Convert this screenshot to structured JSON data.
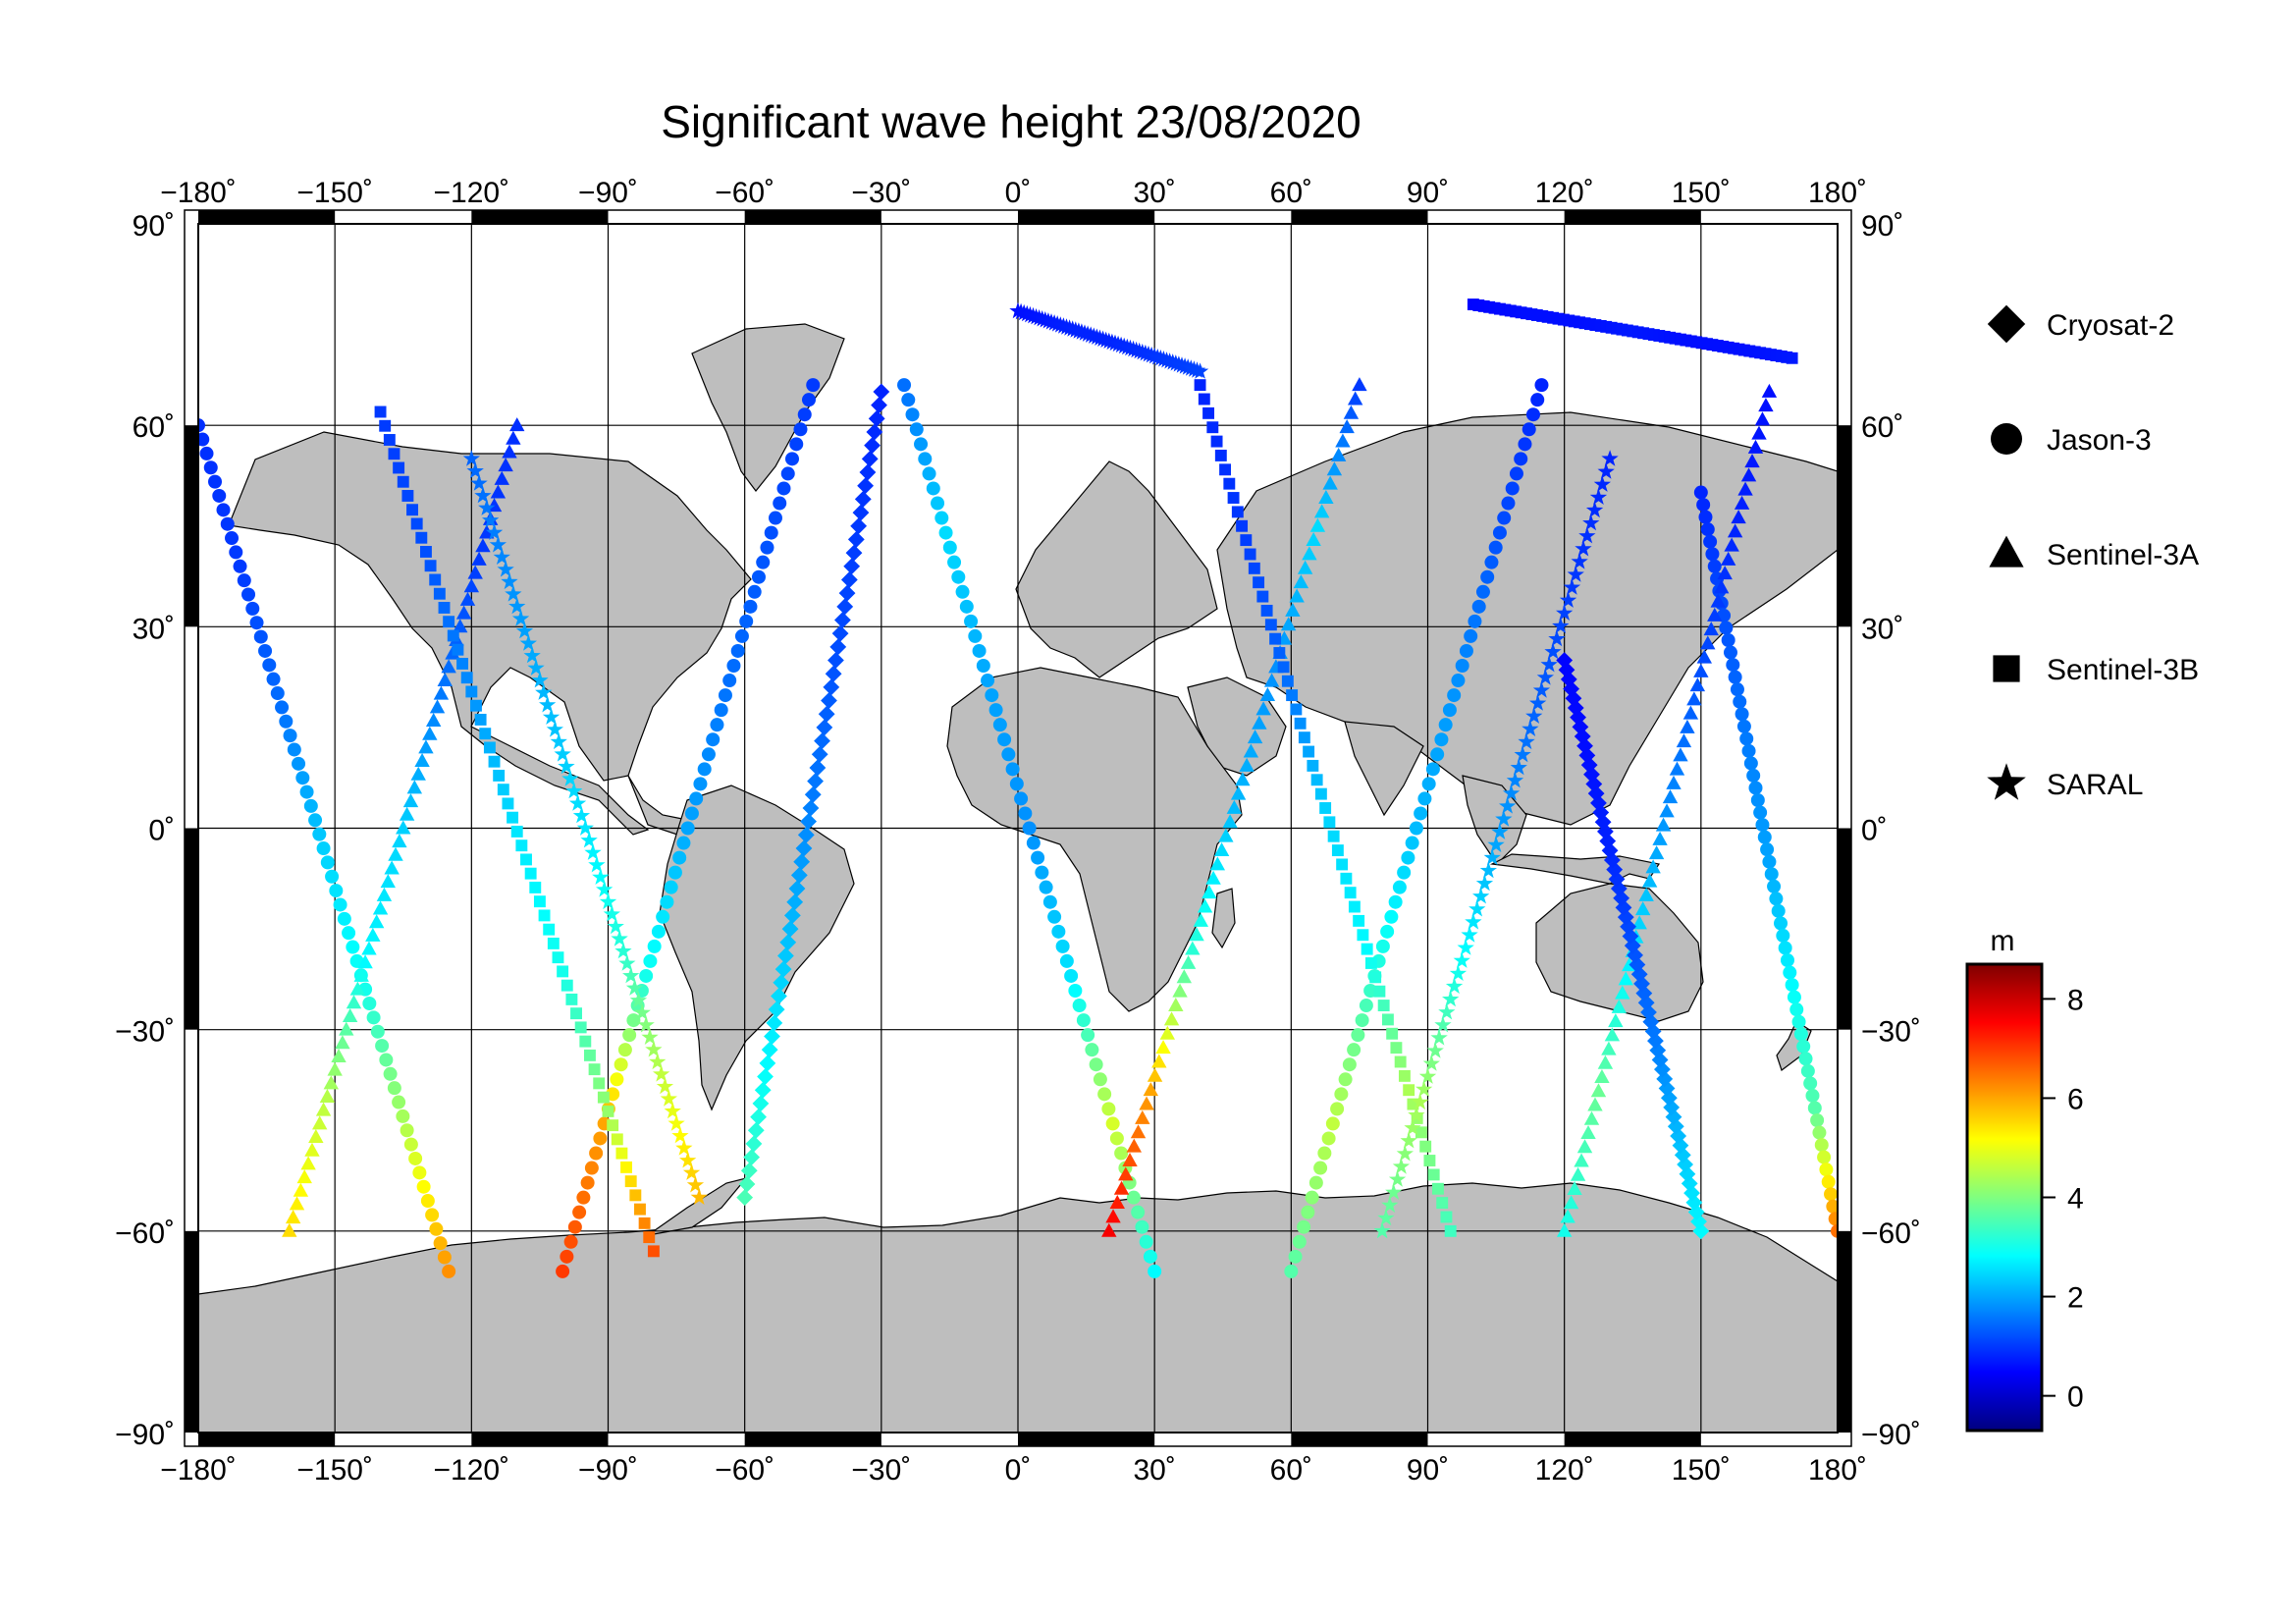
{
  "title": "Significant wave height 23/08/2020",
  "map": {
    "projection": "equirectangular",
    "lon_range": [
      -180,
      180
    ],
    "lat_range": [
      -90,
      90
    ],
    "grid_lon": [
      -180,
      -150,
      -120,
      -90,
      -60,
      -30,
      0,
      30,
      60,
      90,
      120,
      150,
      180
    ],
    "grid_lat": [
      -90,
      -60,
      -30,
      0,
      30,
      60,
      90
    ],
    "lon_tick_labels": [
      "−180˚",
      "−150˚",
      "−120˚",
      "−90˚",
      "−60˚",
      "−30˚",
      "0˚",
      "30˚",
      "60˚",
      "90˚",
      "120˚",
      "150˚",
      "180˚"
    ],
    "lat_tick_labels": [
      "−90˚",
      "−60˚",
      "−30˚",
      "0˚",
      "30˚",
      "60˚",
      "90˚"
    ],
    "land_color": "#bebebe",
    "ocean_color": "#ffffff"
  },
  "legend": {
    "entries": [
      {
        "label": "Cryosat-2",
        "symbol": "diamond"
      },
      {
        "label": "Jason-3",
        "symbol": "circle"
      },
      {
        "label": "Sentinel-3A",
        "symbol": "triangle"
      },
      {
        "label": "Sentinel-3B",
        "symbol": "square"
      },
      {
        "label": "SARAL",
        "symbol": "star"
      }
    ]
  },
  "colorbar": {
    "unit": "m",
    "range": [
      -0.7,
      8.7
    ],
    "ticks": [
      0,
      2,
      4,
      6,
      8
    ],
    "tick_labels": [
      "0",
      "2",
      "4",
      "6",
      "8"
    ],
    "colormap": "jet"
  },
  "chart_data": {
    "type": "scatter",
    "title": "Significant wave height 23/08/2020",
    "xlabel": "",
    "ylabel": "",
    "xlim": [
      -180,
      180
    ],
    "ylim": [
      -90,
      90
    ],
    "value_unit": "m",
    "series": [
      {
        "name": "Jason-3",
        "symbol": "circle",
        "tracks": [
          {
            "lon_start": -25,
            "lat_start": 66,
            "lon_end": 30,
            "lat_end": -66,
            "swh": [
              1.5,
              2.5,
              2.0,
              1.8,
              2.6,
              4.8,
              2.8
            ]
          },
          {
            "lon_start": 60,
            "lat_start": -66,
            "lon_end": 115,
            "lat_end": 66,
            "swh": [
              3.6,
              4.6,
              3.2,
              2.2,
              1.8,
              1.2,
              0.8
            ]
          },
          {
            "lon_start": -180,
            "lat_start": 60,
            "lon_end": -125,
            "lat_end": -66,
            "swh": [
              0.9,
              1.0,
              1.5,
              2.4,
              3.0,
              4.5,
              6.2
            ]
          },
          {
            "lon_start": -100,
            "lat_start": -66,
            "lon_end": -45,
            "lat_end": 66,
            "swh": [
              7.0,
              6.0,
              3.0,
              2.0,
              1.5,
              1.2,
              1.0
            ]
          },
          {
            "lon_start": 150,
            "lat_start": 50,
            "lon_end": 180,
            "lat_end": -60,
            "swh": [
              0.8,
              1.2,
              1.6,
              2.0,
              2.8,
              3.6,
              6.5
            ]
          }
        ]
      },
      {
        "name": "Sentinel-3A",
        "symbol": "triangle",
        "tracks": [
          {
            "lon_start": -160,
            "lat_start": -60,
            "lon_end": -110,
            "lat_end": 60,
            "swh": [
              5.5,
              4.5,
              2.8,
              2.4,
              1.6,
              1.0,
              0.9
            ]
          },
          {
            "lon_start": 20,
            "lat_start": -60,
            "lon_end": 75,
            "lat_end": 66,
            "swh": [
              7.6,
              6.0,
              3.2,
              2.2,
              1.8,
              2.5,
              1.0
            ]
          },
          {
            "lon_start": 120,
            "lat_start": -60,
            "lon_end": 165,
            "lat_end": 65,
            "swh": [
              3.0,
              3.8,
              2.6,
              1.8,
              1.2,
              0.8,
              0.6
            ]
          }
        ]
      },
      {
        "name": "Sentinel-3B",
        "symbol": "square",
        "tracks": [
          {
            "lon_start": -140,
            "lat_start": 62,
            "lon_end": -80,
            "lat_end": -63,
            "swh": [
              1.0,
              1.2,
              1.8,
              2.6,
              3.0,
              4.2,
              6.8
            ]
          },
          {
            "lon_start": 40,
            "lat_start": 66,
            "lon_end": 95,
            "lat_end": -60,
            "swh": [
              0.8,
              1.0,
              1.4,
              2.4,
              2.8,
              4.4,
              3.4
            ]
          },
          {
            "lon_start": 100,
            "lat_start": 78,
            "lon_end": 170,
            "lat_end": 70,
            "swh": [
              0.5,
              0.6,
              0.6,
              0.7,
              0.6,
              0.6,
              0.7
            ]
          }
        ]
      },
      {
        "name": "Cryosat-2",
        "symbol": "diamond",
        "tracks": [
          {
            "lon_start": -60,
            "lat_start": -55,
            "lon_end": -30,
            "lat_end": 65,
            "swh": [
              3.5,
              2.8,
              2.2,
              1.6,
              1.2,
              1.0,
              0.8
            ]
          },
          {
            "lon_start": 150,
            "lat_start": -60,
            "lon_end": 120,
            "lat_end": 25,
            "swh": [
              2.8,
              2.2,
              1.6,
              1.2,
              0.8,
              0.6,
              0.5
            ]
          }
        ]
      },
      {
        "name": "SARAL",
        "symbol": "star",
        "tracks": [
          {
            "lon_start": 0,
            "lat_start": 77,
            "lon_end": 40,
            "lat_end": 68,
            "swh": [
              0.6,
              0.7,
              0.8,
              0.8,
              0.9,
              1.0,
              1.1
            ]
          },
          {
            "lon_start": -120,
            "lat_start": 55,
            "lon_end": -70,
            "lat_end": -55,
            "swh": [
              1.4,
              1.8,
              2.2,
              2.6,
              3.2,
              4.6,
              5.8
            ]
          },
          {
            "lon_start": 80,
            "lat_start": -60,
            "lon_end": 130,
            "lat_end": 55,
            "swh": [
              3.6,
              4.4,
              3.0,
              2.0,
              1.4,
              1.0,
              0.8
            ]
          }
        ]
      }
    ]
  }
}
